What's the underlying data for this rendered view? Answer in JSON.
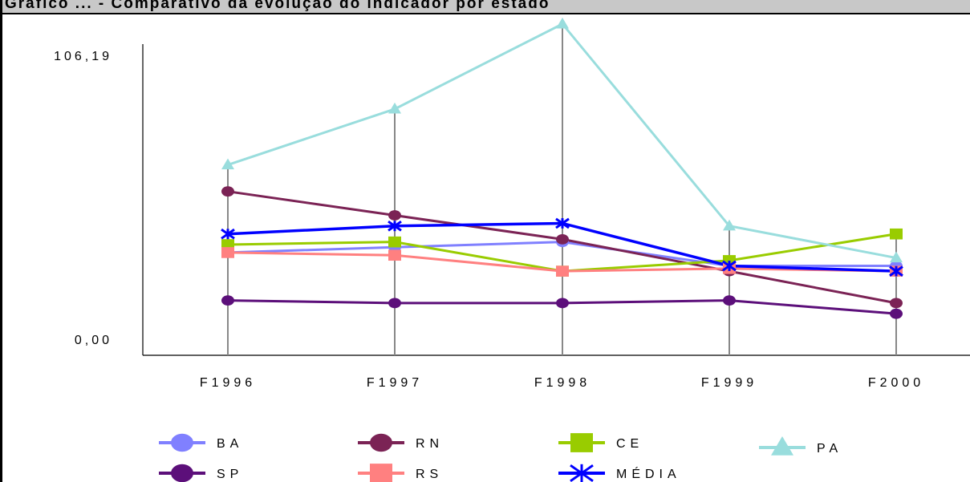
{
  "title": "Gráfico ... - Comparativo da evolução do indicador por estado",
  "chart_data": {
    "type": "line",
    "categories": [
      "F1996",
      "F1997",
      "F1998",
      "F1999",
      "F2000"
    ],
    "y_axis_labels": [
      "106,19",
      "0,00"
    ],
    "ylim": [
      0,
      106.19
    ],
    "grid": "vertical",
    "legend_position": "bottom",
    "series": [
      {
        "name": "BA",
        "color": "#8080ff",
        "marker": "circle",
        "values": [
          32,
          34,
          36,
          27,
          27
        ]
      },
      {
        "name": "RN",
        "color": "#7b2355",
        "marker": "circle",
        "values": [
          55,
          46,
          37,
          25,
          13
        ]
      },
      {
        "name": "CE",
        "color": "#99cc00",
        "marker": "square",
        "values": [
          35,
          36,
          25,
          29,
          39
        ]
      },
      {
        "name": "PA",
        "color": "#99dddd",
        "marker": "triangle",
        "values": [
          65,
          86,
          118,
          42,
          30
        ]
      },
      {
        "name": "SP",
        "color": "#5c0f7a",
        "marker": "circle",
        "values": [
          14,
          13,
          13,
          14,
          9
        ]
      },
      {
        "name": "RS",
        "color": "#ff8080",
        "marker": "square",
        "values": [
          32,
          31,
          25,
          26,
          25
        ]
      },
      {
        "name": "MÉDIA",
        "color": "#0000ff",
        "marker": "star",
        "values": [
          39,
          42,
          43,
          27,
          25
        ]
      }
    ]
  }
}
